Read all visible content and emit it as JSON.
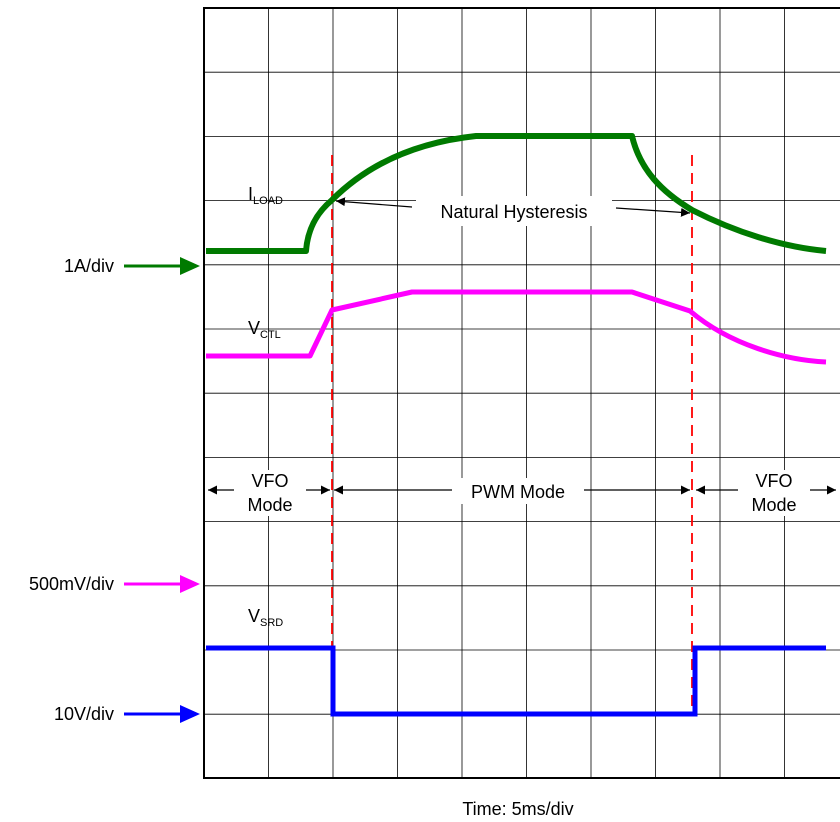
{
  "diagram": {
    "traces": {
      "iload": {
        "label_main": "I",
        "label_sub": "LOAD",
        "color": "#007A00"
      },
      "vctl": {
        "label_main": "V",
        "label_sub": "CTL",
        "color": "#FF00FF"
      },
      "vsrd": {
        "label_main": "V",
        "label_sub": "SRD",
        "color": "#0000FF"
      }
    },
    "scales": {
      "iload": "1A/div",
      "vctl": "500mV/div",
      "vsrd": "10V/div"
    },
    "annotations": {
      "hysteresis": "Natural Hysteresis",
      "pwm_mode": "PWM Mode",
      "vfo_left_line1": "VFO",
      "vfo_left_line2": "Mode",
      "vfo_right_line1": "VFO",
      "vfo_right_line2": "Mode"
    },
    "time_axis": "Time: 5ms/div",
    "colors": {
      "grid": "#000000",
      "boundary": "#FF0000"
    }
  }
}
